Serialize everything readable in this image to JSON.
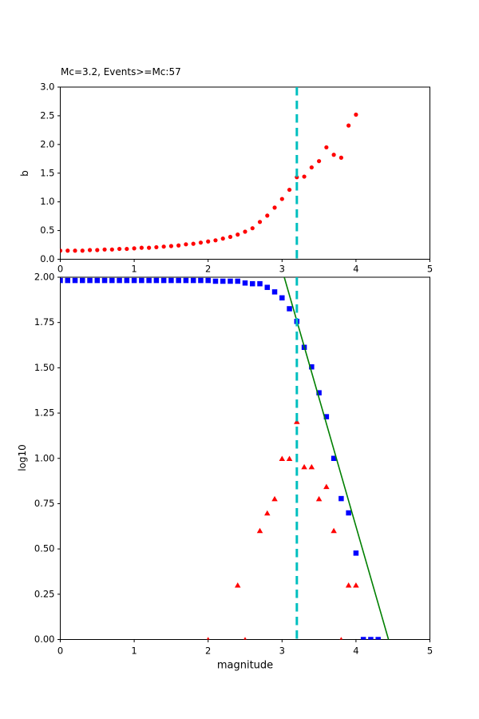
{
  "chart_data": [
    {
      "type": "scatter",
      "name": "b-value-vs-cutoff-magnitude",
      "title": "Mc=3.2, Events>=Mc:57",
      "xlabel": "",
      "ylabel": "b",
      "xlim": [
        0,
        5
      ],
      "ylim": [
        0,
        3
      ],
      "xticks": [
        {
          "v": 0,
          "label": "0"
        },
        {
          "v": 1,
          "label": "1"
        },
        {
          "v": 2,
          "label": "2"
        },
        {
          "v": 3,
          "label": "3"
        },
        {
          "v": 4,
          "label": "4"
        },
        {
          "v": 5,
          "label": "5"
        }
      ],
      "yticks": [
        {
          "v": 0.0,
          "label": "0.0"
        },
        {
          "v": 0.5,
          "label": "0.5"
        },
        {
          "v": 1.0,
          "label": "1.0"
        },
        {
          "v": 1.5,
          "label": "1.5"
        },
        {
          "v": 2.0,
          "label": "2.0"
        },
        {
          "v": 2.5,
          "label": "2.5"
        },
        {
          "v": 3.0,
          "label": "3.0"
        }
      ],
      "grid": false,
      "series": [
        {
          "name": "b-value",
          "marker": "dot",
          "color": "#ff0000",
          "x": [
            0.0,
            0.1,
            0.2,
            0.3,
            0.4,
            0.5,
            0.6,
            0.7,
            0.8,
            0.9,
            1.0,
            1.1,
            1.2,
            1.3,
            1.4,
            1.5,
            1.6,
            1.7,
            1.8,
            1.9,
            2.0,
            2.1,
            2.2,
            2.3,
            2.4,
            2.5,
            2.6,
            2.7,
            2.8,
            2.9,
            3.0,
            3.1,
            3.2,
            3.3,
            3.4,
            3.5,
            3.6,
            3.7,
            3.8,
            3.9,
            4.0
          ],
          "y": [
            0.15,
            0.15,
            0.15,
            0.15,
            0.16,
            0.16,
            0.17,
            0.17,
            0.18,
            0.18,
            0.19,
            0.2,
            0.2,
            0.21,
            0.22,
            0.23,
            0.24,
            0.26,
            0.27,
            0.29,
            0.31,
            0.33,
            0.36,
            0.39,
            0.43,
            0.48,
            0.54,
            0.65,
            0.76,
            0.9,
            1.05,
            1.21,
            1.43,
            1.44,
            1.6,
            1.71,
            1.95,
            1.82,
            1.77,
            2.33,
            2.52
          ]
        }
      ],
      "vline": {
        "x": 3.2,
        "color": "#00bfbf",
        "style": "dashed",
        "name": "mc-cutoff-line"
      }
    },
    {
      "type": "scatter",
      "name": "frequency-magnitude-distribution",
      "title": "",
      "xlabel": "magnitude",
      "ylabel": "log10",
      "xlim": [
        0,
        5
      ],
      "ylim": [
        0,
        2
      ],
      "xticks": [
        {
          "v": 0,
          "label": "0"
        },
        {
          "v": 1,
          "label": "1"
        },
        {
          "v": 2,
          "label": "2"
        },
        {
          "v": 3,
          "label": "3"
        },
        {
          "v": 4,
          "label": "4"
        },
        {
          "v": 5,
          "label": "5"
        }
      ],
      "yticks": [
        {
          "v": 0.0,
          "label": "0.00"
        },
        {
          "v": 0.25,
          "label": "0.25"
        },
        {
          "v": 0.5,
          "label": "0.50"
        },
        {
          "v": 0.75,
          "label": "0.75"
        },
        {
          "v": 1.0,
          "label": "1.00"
        },
        {
          "v": 1.25,
          "label": "1.25"
        },
        {
          "v": 1.5,
          "label": "1.50"
        },
        {
          "v": 1.75,
          "label": "1.75"
        },
        {
          "v": 2.0,
          "label": "2.00"
        }
      ],
      "grid": false,
      "series": [
        {
          "name": "cumulative-count",
          "marker": "square",
          "color": "#0000ff",
          "x": [
            0.0,
            0.1,
            0.2,
            0.3,
            0.4,
            0.5,
            0.6,
            0.7,
            0.8,
            0.9,
            1.0,
            1.1,
            1.2,
            1.3,
            1.4,
            1.5,
            1.6,
            1.7,
            1.8,
            1.9,
            2.0,
            2.1,
            2.2,
            2.3,
            2.4,
            2.5,
            2.6,
            2.7,
            2.8,
            2.9,
            3.0,
            3.1,
            3.2,
            3.3,
            3.4,
            3.5,
            3.6,
            3.7,
            3.8,
            3.9,
            4.0,
            4.1,
            4.2,
            4.3
          ],
          "y": [
            1.982,
            1.982,
            1.982,
            1.982,
            1.982,
            1.982,
            1.982,
            1.982,
            1.982,
            1.982,
            1.982,
            1.982,
            1.982,
            1.982,
            1.982,
            1.982,
            1.982,
            1.982,
            1.982,
            1.982,
            1.982,
            1.978,
            1.978,
            1.978,
            1.978,
            1.968,
            1.964,
            1.964,
            1.944,
            1.919,
            1.886,
            1.826,
            1.756,
            1.613,
            1.505,
            1.362,
            1.23,
            1.0,
            0.778,
            0.699,
            0.477,
            0.0,
            0.0,
            0.0
          ]
        },
        {
          "name": "bin-count",
          "marker": "triangle",
          "color": "#ff0000",
          "x": [
            2.0,
            2.4,
            2.5,
            2.7,
            2.8,
            2.9,
            3.0,
            3.1,
            3.2,
            3.3,
            3.4,
            3.5,
            3.6,
            3.7,
            3.8,
            3.9,
            4.0
          ],
          "y": [
            0.0,
            0.301,
            0.0,
            0.602,
            0.699,
            0.778,
            1.0,
            1.0,
            1.204,
            0.954,
            0.954,
            0.778,
            0.845,
            0.602,
            0.0,
            0.301,
            0.301
          ]
        },
        {
          "name": "gutenberg-richter-fit",
          "marker": "line",
          "color": "#008000",
          "x": [
            3.03,
            4.44
          ],
          "y": [
            2.0,
            0.0
          ]
        }
      ],
      "vline": {
        "x": 3.2,
        "color": "#00bfbf",
        "style": "dashed",
        "name": "mc-cutoff-line"
      }
    }
  ]
}
